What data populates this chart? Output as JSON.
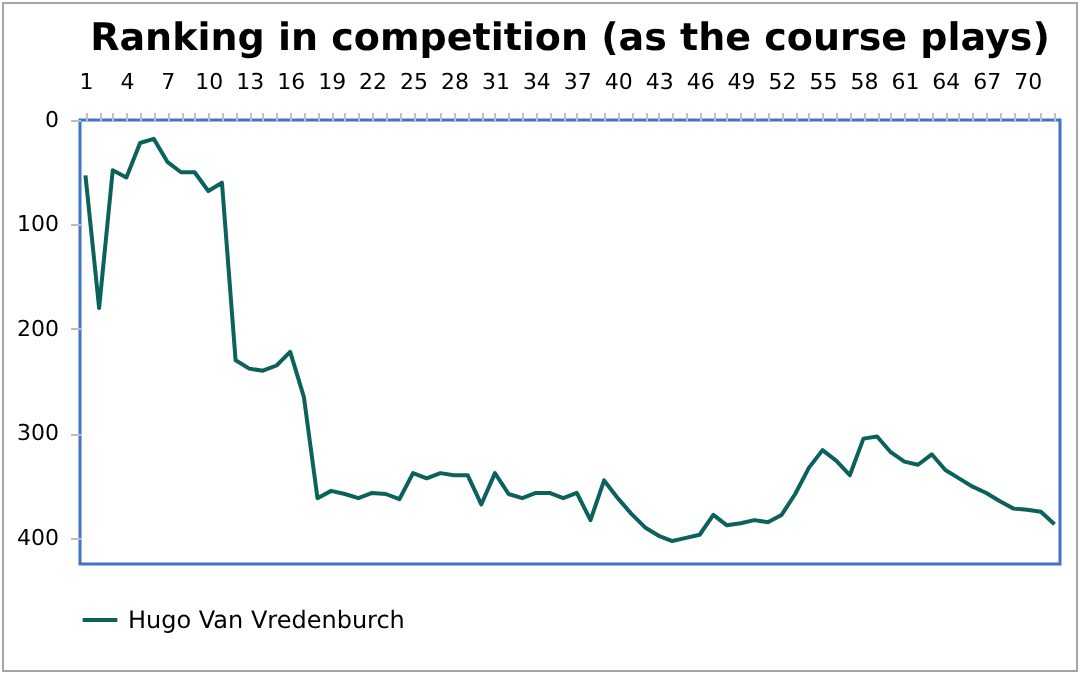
{
  "chart_data": {
    "type": "line",
    "title": "Ranking in competition (as the course plays)",
    "categories": [
      "1",
      null,
      null,
      "4",
      null,
      null,
      "7",
      null,
      null,
      "10",
      null,
      null,
      "13",
      null,
      null,
      "16",
      null,
      null,
      "19",
      null,
      null,
      "22",
      null,
      null,
      "25",
      null,
      null,
      "28",
      null,
      null,
      "31",
      null,
      null,
      "34",
      null,
      null,
      "37",
      null,
      null,
      "40",
      null,
      null,
      "43",
      null,
      null,
      "46",
      null,
      null,
      "49",
      null,
      null,
      "52",
      null,
      null,
      "55",
      null,
      null,
      "58",
      null,
      null,
      "61",
      null,
      null,
      "64",
      null,
      null,
      "67",
      null,
      null,
      "70",
      null,
      null
    ],
    "series": [
      {
        "name": "Hugo Van Vredenburch",
        "color": "#0b625c",
        "values": [
          53,
          180,
          48,
          55,
          22,
          18,
          40,
          50,
          50,
          68,
          60,
          230,
          238,
          240,
          235,
          222,
          265,
          362,
          355,
          358,
          362,
          357,
          358,
          363,
          338,
          343,
          338,
          340,
          340,
          368,
          338,
          358,
          362,
          357,
          357,
          362,
          357,
          383,
          345,
          362,
          377,
          390,
          398,
          403,
          400,
          397,
          378,
          388,
          386,
          383,
          385,
          378,
          358,
          333,
          316,
          326,
          340,
          305,
          303,
          318,
          327,
          330,
          320,
          335,
          343,
          351,
          357,
          365,
          372,
          373,
          375,
          387
        ]
      }
    ],
    "ylim": [
      425,
      0
    ],
    "yticks": [
      0,
      100,
      200,
      300,
      400
    ],
    "grid": false,
    "legend": "bottom",
    "marker": "none",
    "line_style": "solid"
  }
}
